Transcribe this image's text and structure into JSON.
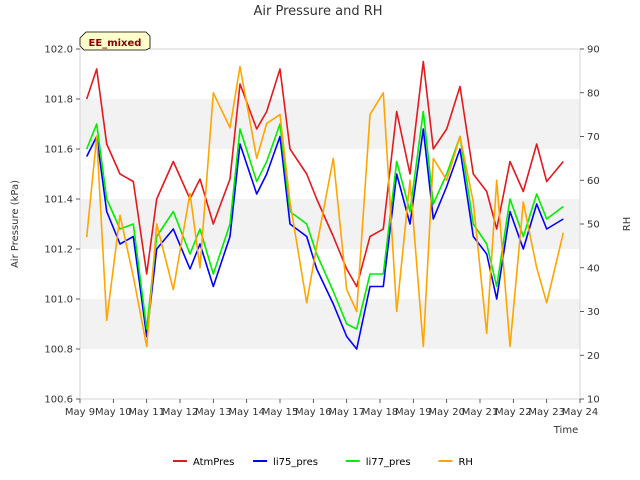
{
  "chart_data": {
    "type": "line",
    "title": "Air Pressure and RH",
    "xlabel": "Time",
    "ylabel_left": "Air Pressure (kPa)",
    "ylabel_right": "RH",
    "badge": "EE_mixed",
    "x_ticks": [
      "May 9",
      "May 10",
      "May 11",
      "May 12",
      "May 13",
      "May 14",
      "May 15",
      "May 16",
      "May 17",
      "May 18",
      "May 19",
      "May 20",
      "May 21",
      "May 22",
      "May 23",
      "May 24"
    ],
    "xlim": [
      0,
      15
    ],
    "ylim_left": [
      100.6,
      102.0
    ],
    "ylim_right": [
      10,
      90
    ],
    "y_ticks_left": [
      "100.6",
      "100.8",
      "101.0",
      "101.2",
      "101.4",
      "101.6",
      "101.8",
      "102.0"
    ],
    "y_ticks_right": [
      "10",
      "20",
      "30",
      "40",
      "50",
      "60",
      "70",
      "80",
      "90"
    ],
    "grid": "horizontal bands",
    "legend_position": "bottom",
    "x": [
      0.2,
      0.5,
      0.8,
      1.2,
      1.6,
      2.0,
      2.3,
      2.8,
      3.3,
      3.6,
      4.0,
      4.5,
      4.8,
      5.3,
      5.6,
      6.0,
      6.3,
      6.8,
      7.1,
      7.6,
      8.0,
      8.3,
      8.7,
      9.1,
      9.5,
      9.9,
      10.3,
      10.6,
      11.0,
      11.4,
      11.8,
      12.2,
      12.5,
      12.9,
      13.3,
      13.7,
      14.0,
      14.5
    ],
    "series": [
      {
        "name": "AtmPres",
        "color": "#e31a1c",
        "axis": "left",
        "values": [
          101.8,
          101.92,
          101.62,
          101.5,
          101.47,
          101.1,
          101.4,
          101.55,
          101.4,
          101.48,
          101.3,
          101.48,
          101.86,
          101.68,
          101.75,
          101.92,
          101.6,
          101.5,
          101.4,
          101.25,
          101.12,
          101.05,
          101.25,
          101.28,
          101.75,
          101.5,
          101.95,
          101.6,
          101.68,
          101.85,
          101.5,
          101.43,
          101.28,
          101.55,
          101.43,
          101.62,
          101.47,
          101.55
        ]
      },
      {
        "name": "li75_pres",
        "color": "#0000ff",
        "axis": "left",
        "values": [
          101.57,
          101.65,
          101.35,
          101.22,
          101.25,
          100.85,
          101.2,
          101.28,
          101.12,
          101.22,
          101.05,
          101.25,
          101.62,
          101.42,
          101.5,
          101.65,
          101.3,
          101.25,
          101.12,
          100.98,
          100.85,
          100.8,
          101.05,
          101.05,
          101.5,
          101.3,
          101.68,
          101.32,
          101.45,
          101.6,
          101.25,
          101.18,
          101.0,
          101.35,
          101.2,
          101.38,
          101.28,
          101.32
        ]
      },
      {
        "name": "li77_pres",
        "color": "#00ee00",
        "axis": "left",
        "values": [
          101.6,
          101.7,
          101.4,
          101.28,
          101.3,
          100.88,
          101.25,
          101.35,
          101.18,
          101.28,
          101.1,
          101.3,
          101.68,
          101.47,
          101.55,
          101.7,
          101.35,
          101.3,
          101.18,
          101.03,
          100.9,
          100.88,
          101.1,
          101.1,
          101.55,
          101.35,
          101.75,
          101.38,
          101.5,
          101.65,
          101.3,
          101.22,
          101.05,
          101.4,
          101.25,
          101.42,
          101.32,
          101.37
        ]
      },
      {
        "name": "RH",
        "color": "#ffa500",
        "axis": "right",
        "values": [
          47,
          70,
          28,
          52,
          38,
          22,
          50,
          35,
          57,
          40,
          80,
          72,
          86,
          65,
          73,
          75,
          55,
          32,
          45,
          65,
          35,
          30,
          75,
          80,
          30,
          60,
          22,
          65,
          60,
          70,
          55,
          25,
          60,
          22,
          55,
          40,
          32,
          48
        ]
      }
    ]
  },
  "legend": {
    "items": [
      {
        "label": "AtmPres",
        "color": "#e31a1c"
      },
      {
        "label": "li75_pres",
        "color": "#0000ff"
      },
      {
        "label": "li77_pres",
        "color": "#00ee00"
      },
      {
        "label": "RH",
        "color": "#ffa500"
      }
    ]
  }
}
